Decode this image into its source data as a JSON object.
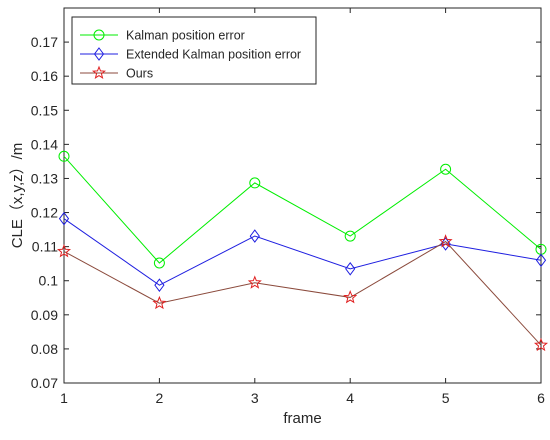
{
  "chart_data": {
    "type": "line",
    "xlabel": "frame",
    "ylabel": "CLE（x,y,z）/m",
    "x": [
      1,
      2,
      3,
      4,
      5,
      6
    ],
    "xlim": [
      1,
      6
    ],
    "ylim": [
      0.07,
      0.18
    ],
    "xticks": [
      "1",
      "2",
      "3",
      "4",
      "5",
      "6"
    ],
    "yticks": [
      "0.07",
      "0.08",
      "0.09",
      "0.1",
      "0.11",
      "0.12",
      "0.13",
      "0.14",
      "0.15",
      "0.16",
      "0.17"
    ],
    "grid": false,
    "legend_location": "top-left",
    "series": [
      {
        "name": "Kalman position error",
        "values": [
          0.1365,
          0.1052,
          0.1287,
          0.1131,
          0.1327,
          0.1092
        ],
        "color": "#00ee00",
        "marker": "circle"
      },
      {
        "name": "Extended Kalman position error",
        "values": [
          0.1182,
          0.0987,
          0.1131,
          0.1035,
          0.1108,
          0.106
        ],
        "color": "#1f1fe0",
        "marker": "diamond"
      },
      {
        "name": "Ours",
        "values": [
          0.1086,
          0.0934,
          0.0994,
          0.0951,
          0.1115,
          0.0811
        ],
        "color": "#8b4a3c",
        "marker_color": "#e02020",
        "marker": "star"
      }
    ]
  }
}
